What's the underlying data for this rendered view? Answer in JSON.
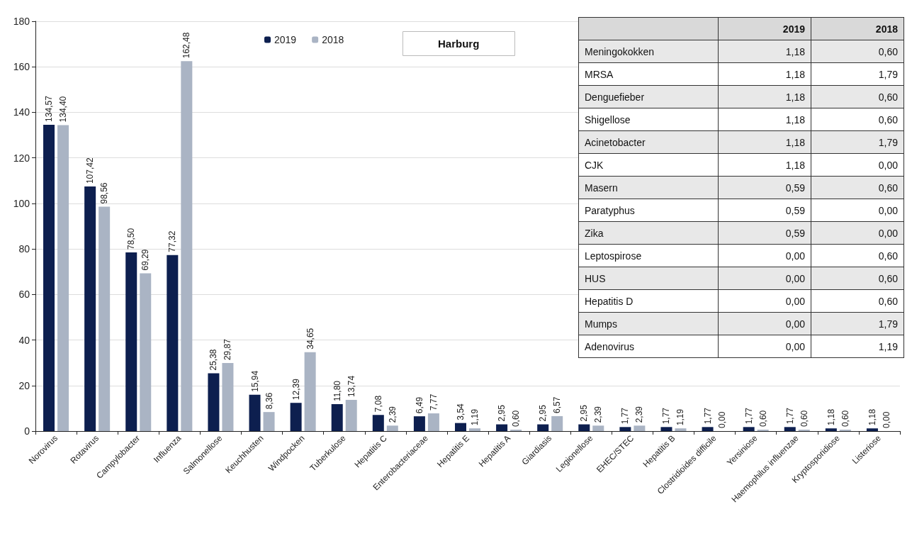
{
  "chart_data": [
    {
      "type": "bar",
      "title": "Harburg",
      "categories": [
        "Norovirus",
        "Rotavirus",
        "Campylobacter",
        "Influenza",
        "Salmonellose",
        "Keuchhusten",
        "Windpocken",
        "Tuberkulose",
        "Hepatitis C",
        "Enterobacteriaceae",
        "Hepatitis E",
        "Hepatitis A",
        "Giardiasis",
        "Legionellose",
        "EHEC/STEC",
        "Hepatitis B",
        "Clostridioides difficile",
        "Yersiniose",
        "Haemophilus influenzae",
        "Kryptosporidiose",
        "Listeriose"
      ],
      "series": [
        {
          "name": "2019",
          "color": "#0d1f4f",
          "values": [
            134.57,
            107.42,
            78.5,
            77.32,
            25.38,
            15.94,
            12.39,
            11.8,
            7.08,
            6.49,
            3.54,
            2.95,
            2.95,
            2.95,
            1.77,
            1.77,
            1.77,
            1.77,
            1.77,
            1.18,
            1.18
          ],
          "value_labels": [
            "134,57",
            "107,42",
            "78,50",
            "77,32",
            "25,38",
            "15,94",
            "12,39",
            "11,80",
            "7,08",
            "6,49",
            "3,54",
            "2,95",
            "2,95",
            "2,95",
            "1,77",
            "1,77",
            "1,77",
            "1,77",
            "1,77",
            "1,18",
            "1,18"
          ]
        },
        {
          "name": "2018",
          "color": "#aab4c4",
          "values": [
            134.4,
            98.56,
            69.29,
            162.48,
            29.87,
            8.36,
            34.65,
            13.74,
            2.39,
            7.77,
            1.19,
            0.6,
            6.57,
            2.39,
            2.39,
            1.19,
            0.0,
            0.6,
            0.6,
            0.6,
            0.0
          ],
          "value_labels": [
            "134,40",
            "98,56",
            "69,29",
            "162,48",
            "29,87",
            "8,36",
            "34,65",
            "13,74",
            "2,39",
            "7,77",
            "1,19",
            "0,60",
            "6,57",
            "2,39",
            "2,39",
            "1,19",
            "0,00",
            "0,60",
            "0,60",
            "0,60",
            "0,00"
          ]
        }
      ],
      "ylim": [
        0,
        180
      ],
      "yticks": [
        0,
        20,
        40,
        60,
        80,
        100,
        120,
        140,
        160,
        180
      ],
      "grid": "y",
      "legend": "top"
    },
    {
      "type": "other",
      "categories": [
        "Meningokokken",
        "MRSA",
        "Denguefieber",
        "Shigellose",
        "Acinetobacter",
        "CJK",
        "Masern",
        "Paratyphus",
        "Zika",
        "Leptospirose",
        "HUS",
        "Hepatitis D",
        "Mumps",
        "Adenovirus"
      ],
      "series": [
        {
          "name": "2019",
          "colors": [
            "#e8e8e8",
            "#ffffff",
            "#e8e8e8",
            "#ffffff",
            "#e8e8e8",
            "#ffffff",
            "#e8e8e8",
            "#ffffff",
            "#e8e8e8",
            "#ffffff",
            "#e8e8e8",
            "#ffffff",
            "#e8e8e8",
            "#ffffff"
          ],
          "values": [
            1.18,
            1.18,
            1.18,
            1.18,
            1.18,
            1.18,
            0.59,
            0.59,
            0.59,
            0.0,
            0.0,
            0.0,
            0.0,
            0.0
          ],
          "value_labels": [
            "1,18",
            "1,18",
            "1,18",
            "1,18",
            "1,18",
            "1,18",
            "0,59",
            "0,59",
            "0,59",
            "0,00",
            "0,00",
            "0,00",
            "0,00",
            "0,00"
          ]
        },
        {
          "name": "2018",
          "colors": [
            "#e8e8e8",
            "#ffffff",
            "#e8e8e8",
            "#ffffff",
            "#e8e8e8",
            "#ffffff",
            "#e8e8e8",
            "#ffffff",
            "#e8e8e8",
            "#ffffff",
            "#e8e8e8",
            "#ffffff",
            "#e8e8e8",
            "#ffffff"
          ],
          "values": [
            0.6,
            1.79,
            0.6,
            0.6,
            1.79,
            0.0,
            0.6,
            0.0,
            0.0,
            0.6,
            0.6,
            0.6,
            1.79,
            1.19
          ],
          "value_labels": [
            "0,60",
            "1,79",
            "0,60",
            "0,60",
            "1,79",
            "0,00",
            "0,60",
            "0,00",
            "0,00",
            "0,60",
            "0,60",
            "0,60",
            "1,79",
            "1,19"
          ]
        }
      ]
    }
  ]
}
